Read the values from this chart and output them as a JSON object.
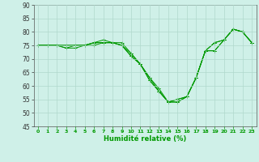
{
  "xlabel": "Humidité relative (%)",
  "xlim": [
    -0.5,
    23.5
  ],
  "ylim": [
    45,
    90
  ],
  "yticks": [
    45,
    50,
    55,
    60,
    65,
    70,
    75,
    80,
    85,
    90
  ],
  "xticks": [
    0,
    1,
    2,
    3,
    4,
    5,
    6,
    7,
    8,
    9,
    10,
    11,
    12,
    13,
    14,
    15,
    16,
    17,
    18,
    19,
    20,
    21,
    22,
    23
  ],
  "bg_color": "#cff0e8",
  "grid_color": "#b0d8cc",
  "line_color": "#009900",
  "series": [
    [
      75,
      75,
      75,
      75,
      75,
      75,
      76,
      77,
      76,
      76,
      72,
      68,
      63,
      59,
      54,
      54,
      56,
      63,
      73,
      76,
      77,
      81,
      80,
      76
    ],
    [
      75,
      75,
      75,
      75,
      75,
      75,
      76,
      76,
      76,
      75,
      72,
      68,
      63,
      58,
      54,
      54,
      56,
      63,
      73,
      76,
      77,
      81,
      80,
      76
    ],
    [
      75,
      75,
      75,
      74,
      74,
      75,
      76,
      76,
      76,
      75,
      71,
      68,
      62,
      58,
      54,
      55,
      56,
      63,
      73,
      73,
      77,
      81,
      80,
      76
    ],
    [
      75,
      75,
      75,
      74,
      75,
      75,
      75,
      76,
      76,
      75,
      71,
      68,
      62,
      58,
      54,
      55,
      56,
      63,
      73,
      73,
      77,
      81,
      80,
      76
    ]
  ]
}
